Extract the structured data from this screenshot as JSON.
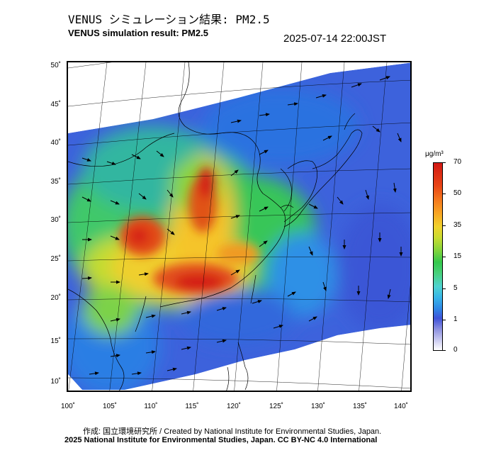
{
  "header": {
    "title_jp": "VENUS シミュレーション結果: PM2.5",
    "title_en": "VENUS simulation result: PM2.5",
    "timestamp": "2025-07-14 22:00JST"
  },
  "map": {
    "latitude_labels": [
      "50˚",
      "45˚",
      "40˚",
      "35˚",
      "30˚",
      "25˚",
      "20˚",
      "15˚",
      "10˚"
    ],
    "longitude_labels": [
      "100˚",
      "105˚",
      "110˚",
      "115˚",
      "120˚",
      "125˚",
      "130˚",
      "135˚",
      "140˚"
    ],
    "projection": "conic"
  },
  "colorbar": {
    "unit": "μg/m³",
    "tick_labels": [
      "70",
      "50",
      "35",
      "15",
      "5",
      "1",
      "0"
    ],
    "colors": [
      "#ffffff",
      "#8f93e0",
      "#3f52d8",
      "#37b4e8",
      "#48d07c",
      "#34c84c",
      "#c8dc30",
      "#f1d22c",
      "#f47a1e",
      "#d21814"
    ]
  },
  "footer": {
    "credit_jp": "作成: 国立環境研究所 / Created by National Institute for Environmental Studies, Japan.",
    "credit_en": "2025 National Institute for Environmental Studies, Japan. CC BY-NC 4.0 International"
  }
}
